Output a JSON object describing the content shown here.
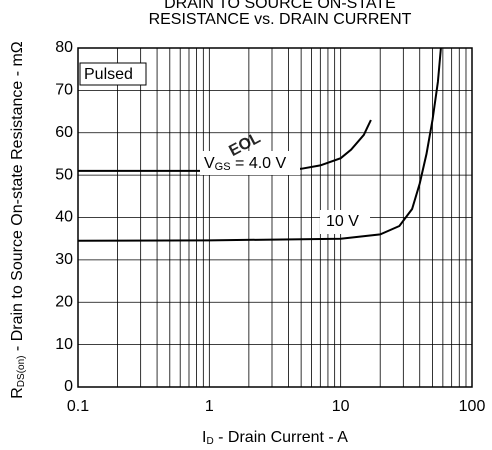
{
  "chart_data": {
    "type": "line",
    "title": [
      "DRAIN TO SOURCE ON-STATE",
      "RESISTANCE vs. DRAIN CURRENT"
    ],
    "x_label": {
      "main": "I",
      "sub": "D",
      "rest": " - Drain Current - A"
    },
    "y_label": {
      "main": "R",
      "sub": "DS(on)",
      "rest": " -   Drain to Source On-state Resistance - mΩ"
    },
    "annotation": "Pulsed",
    "watermark": "EOL",
    "watermark_color": "#ff0000",
    "xscale": "log",
    "xlim": [
      0.1,
      100
    ],
    "xticks": [
      0.1,
      1,
      10,
      100
    ],
    "xminorticks": [
      0.2,
      0.3,
      0.4,
      0.5,
      0.6,
      0.7,
      0.8,
      0.9,
      2,
      3,
      4,
      5,
      6,
      7,
      8,
      9,
      20,
      30,
      40,
      50,
      60,
      70,
      80,
      90
    ],
    "ylim": [
      0,
      80
    ],
    "yticks": [
      0,
      10,
      20,
      30,
      40,
      50,
      60,
      70,
      80
    ],
    "grid": true,
    "series": [
      {
        "name_prefix": "V",
        "name_sub": "GS",
        "name": " = 4.0 V",
        "color": "#000000",
        "x": [
          0.1,
          1,
          3,
          5,
          7,
          10,
          12,
          15,
          17
        ],
        "values": [
          51,
          51,
          51.2,
          51.5,
          52.3,
          54,
          56,
          59.5,
          63
        ]
      },
      {
        "name": "10 V",
        "color": "#000000",
        "x": [
          0.1,
          1,
          10,
          20,
          28,
          35,
          40,
          45,
          50,
          55,
          58
        ],
        "values": [
          34.5,
          34.6,
          35,
          36,
          38,
          42,
          48,
          55,
          63,
          72,
          80
        ]
      }
    ]
  }
}
